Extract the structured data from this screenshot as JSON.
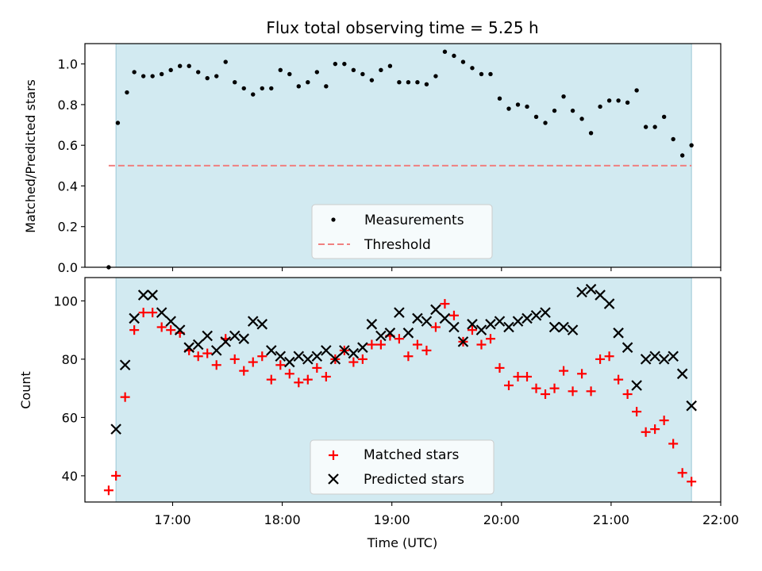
{
  "chart_data": [
    {
      "type": "scatter",
      "title": "Flux total observing time = 5.25 h",
      "xlabel": "",
      "ylabel": "Matched/Predicted stars",
      "ylim": [
        0,
        1.1
      ],
      "yticks": [
        "0.0",
        "0.2",
        "0.4",
        "0.6",
        "0.8",
        "1.0"
      ],
      "xlim": [
        "16:12",
        "22:00"
      ],
      "shaded_span": [
        "16:29",
        "21:44"
      ],
      "legend_position": "lower center",
      "series": [
        {
          "name": "Measurements",
          "marker": "dot",
          "color": "#000000",
          "points": [
            [
              "16:25",
              0.0
            ],
            [
              "16:30",
              0.71
            ],
            [
              "16:35",
              0.86
            ],
            [
              "16:39",
              0.96
            ],
            [
              "16:44",
              0.94
            ],
            [
              "16:49",
              0.94
            ],
            [
              "16:54",
              0.95
            ],
            [
              "16:59",
              0.97
            ],
            [
              "17:04",
              0.99
            ],
            [
              "17:09",
              0.99
            ],
            [
              "17:14",
              0.96
            ],
            [
              "17:19",
              0.93
            ],
            [
              "17:24",
              0.94
            ],
            [
              "17:29",
              1.01
            ],
            [
              "17:34",
              0.91
            ],
            [
              "17:39",
              0.88
            ],
            [
              "17:44",
              0.85
            ],
            [
              "17:49",
              0.88
            ],
            [
              "17:54",
              0.88
            ],
            [
              "17:59",
              0.97
            ],
            [
              "18:04",
              0.95
            ],
            [
              "18:09",
              0.89
            ],
            [
              "18:14",
              0.91
            ],
            [
              "18:19",
              0.96
            ],
            [
              "18:24",
              0.89
            ],
            [
              "18:29",
              1.0
            ],
            [
              "18:34",
              1.0
            ],
            [
              "18:39",
              0.97
            ],
            [
              "18:44",
              0.95
            ],
            [
              "18:49",
              0.92
            ],
            [
              "18:54",
              0.97
            ],
            [
              "18:59",
              0.99
            ],
            [
              "19:04",
              0.91
            ],
            [
              "19:09",
              0.91
            ],
            [
              "19:14",
              0.91
            ],
            [
              "19:19",
              0.9
            ],
            [
              "19:24",
              0.94
            ],
            [
              "19:29",
              1.06
            ],
            [
              "19:34",
              1.04
            ],
            [
              "19:39",
              1.01
            ],
            [
              "19:44",
              0.98
            ],
            [
              "19:49",
              0.95
            ],
            [
              "19:54",
              0.95
            ],
            [
              "19:59",
              0.83
            ],
            [
              "20:04",
              0.78
            ],
            [
              "20:09",
              0.8
            ],
            [
              "20:14",
              0.79
            ],
            [
              "20:19",
              0.74
            ],
            [
              "20:24",
              0.71
            ],
            [
              "20:29",
              0.77
            ],
            [
              "20:34",
              0.84
            ],
            [
              "20:39",
              0.77
            ],
            [
              "20:44",
              0.73
            ],
            [
              "20:49",
              0.66
            ],
            [
              "20:54",
              0.79
            ],
            [
              "20:59",
              0.82
            ],
            [
              "21:04",
              0.82
            ],
            [
              "21:09",
              0.81
            ],
            [
              "21:14",
              0.87
            ],
            [
              "21:19",
              0.69
            ],
            [
              "21:24",
              0.69
            ],
            [
              "21:29",
              0.74
            ],
            [
              "21:34",
              0.63
            ],
            [
              "21:39",
              0.55
            ],
            [
              "21:44",
              0.6
            ]
          ]
        },
        {
          "name": "Threshold",
          "marker": "dashed-line",
          "color": "#f08080",
          "points": [
            [
              "16:25",
              0.5
            ],
            [
              "21:44",
              0.5
            ]
          ]
        }
      ]
    },
    {
      "type": "scatter",
      "title": "",
      "xlabel": "Time (UTC)",
      "ylabel": "Count",
      "ylim": [
        31,
        108
      ],
      "yticks": [
        "40",
        "60",
        "80",
        "100"
      ],
      "xticks": [
        "17:00",
        "18:00",
        "19:00",
        "20:00",
        "21:00",
        "22:00"
      ],
      "xlim": [
        "16:12",
        "22:00"
      ],
      "shaded_span": [
        "16:29",
        "21:44"
      ],
      "legend_position": "lower center",
      "series": [
        {
          "name": "Matched stars",
          "marker": "plus",
          "color": "#ff0000",
          "points": [
            [
              "16:25",
              35
            ],
            [
              "16:29",
              40
            ],
            [
              "16:34",
              67
            ],
            [
              "16:39",
              90
            ],
            [
              "16:44",
              96
            ],
            [
              "16:49",
              96
            ],
            [
              "16:54",
              91
            ],
            [
              "16:59",
              90
            ],
            [
              "17:04",
              89
            ],
            [
              "17:09",
              83
            ],
            [
              "17:14",
              81
            ],
            [
              "17:19",
              82
            ],
            [
              "17:24",
              78
            ],
            [
              "17:29",
              87
            ],
            [
              "17:34",
              80
            ],
            [
              "17:39",
              76
            ],
            [
              "17:44",
              79
            ],
            [
              "17:49",
              81
            ],
            [
              "17:54",
              73
            ],
            [
              "17:59",
              78
            ],
            [
              "18:04",
              75
            ],
            [
              "18:09",
              72
            ],
            [
              "18:14",
              73
            ],
            [
              "18:19",
              77
            ],
            [
              "18:24",
              74
            ],
            [
              "18:29",
              80
            ],
            [
              "18:34",
              83
            ],
            [
              "18:39",
              79
            ],
            [
              "18:44",
              80
            ],
            [
              "18:49",
              85
            ],
            [
              "18:54",
              85
            ],
            [
              "18:59",
              88
            ],
            [
              "19:04",
              87
            ],
            [
              "19:09",
              81
            ],
            [
              "19:14",
              85
            ],
            [
              "19:19",
              83
            ],
            [
              "19:24",
              91
            ],
            [
              "19:29",
              99
            ],
            [
              "19:34",
              95
            ],
            [
              "19:39",
              86
            ],
            [
              "19:44",
              90
            ],
            [
              "19:49",
              85
            ],
            [
              "19:54",
              87
            ],
            [
              "19:59",
              77
            ],
            [
              "20:04",
              71
            ],
            [
              "20:09",
              74
            ],
            [
              "20:14",
              74
            ],
            [
              "20:19",
              70
            ],
            [
              "20:24",
              68
            ],
            [
              "20:29",
              70
            ],
            [
              "20:34",
              76
            ],
            [
              "20:39",
              69
            ],
            [
              "20:44",
              75
            ],
            [
              "20:49",
              69
            ],
            [
              "20:54",
              80
            ],
            [
              "20:59",
              81
            ],
            [
              "21:04",
              73
            ],
            [
              "21:09",
              68
            ],
            [
              "21:14",
              62
            ],
            [
              "21:19",
              55
            ],
            [
              "21:24",
              56
            ],
            [
              "21:29",
              59
            ],
            [
              "21:34",
              51
            ],
            [
              "21:39",
              41
            ],
            [
              "21:44",
              38
            ]
          ]
        },
        {
          "name": "Predicted stars",
          "marker": "x",
          "color": "#000000",
          "points": [
            [
              "16:29",
              56
            ],
            [
              "16:34",
              78
            ],
            [
              "16:39",
              94
            ],
            [
              "16:44",
              102
            ],
            [
              "16:49",
              102
            ],
            [
              "16:54",
              96
            ],
            [
              "16:59",
              93
            ],
            [
              "17:04",
              90
            ],
            [
              "17:09",
              84
            ],
            [
              "17:14",
              85
            ],
            [
              "17:19",
              88
            ],
            [
              "17:24",
              83
            ],
            [
              "17:29",
              86
            ],
            [
              "17:34",
              88
            ],
            [
              "17:39",
              87
            ],
            [
              "17:44",
              93
            ],
            [
              "17:49",
              92
            ],
            [
              "17:54",
              83
            ],
            [
              "17:59",
              81
            ],
            [
              "18:04",
              79
            ],
            [
              "18:09",
              81
            ],
            [
              "18:14",
              80
            ],
            [
              "18:19",
              81
            ],
            [
              "18:24",
              83
            ],
            [
              "18:29",
              80
            ],
            [
              "18:34",
              83
            ],
            [
              "18:39",
              82
            ],
            [
              "18:44",
              84
            ],
            [
              "18:49",
              92
            ],
            [
              "18:54",
              88
            ],
            [
              "18:59",
              89
            ],
            [
              "19:04",
              96
            ],
            [
              "19:09",
              89
            ],
            [
              "19:14",
              94
            ],
            [
              "19:19",
              93
            ],
            [
              "19:24",
              97
            ],
            [
              "19:29",
              94
            ],
            [
              "19:34",
              91
            ],
            [
              "19:39",
              86
            ],
            [
              "19:44",
              92
            ],
            [
              "19:49",
              90
            ],
            [
              "19:54",
              92
            ],
            [
              "19:59",
              93
            ],
            [
              "20:04",
              91
            ],
            [
              "20:09",
              93
            ],
            [
              "20:14",
              94
            ],
            [
              "20:19",
              95
            ],
            [
              "20:24",
              96
            ],
            [
              "20:29",
              91
            ],
            [
              "20:34",
              91
            ],
            [
              "20:39",
              90
            ],
            [
              "20:44",
              103
            ],
            [
              "20:49",
              104
            ],
            [
              "20:54",
              102
            ],
            [
              "20:59",
              99
            ],
            [
              "21:04",
              89
            ],
            [
              "21:09",
              84
            ],
            [
              "21:14",
              71
            ],
            [
              "21:19",
              80
            ],
            [
              "21:24",
              81
            ],
            [
              "21:29",
              80
            ],
            [
              "21:34",
              81
            ],
            [
              "21:39",
              75
            ],
            [
              "21:44",
              64
            ]
          ]
        }
      ]
    }
  ]
}
